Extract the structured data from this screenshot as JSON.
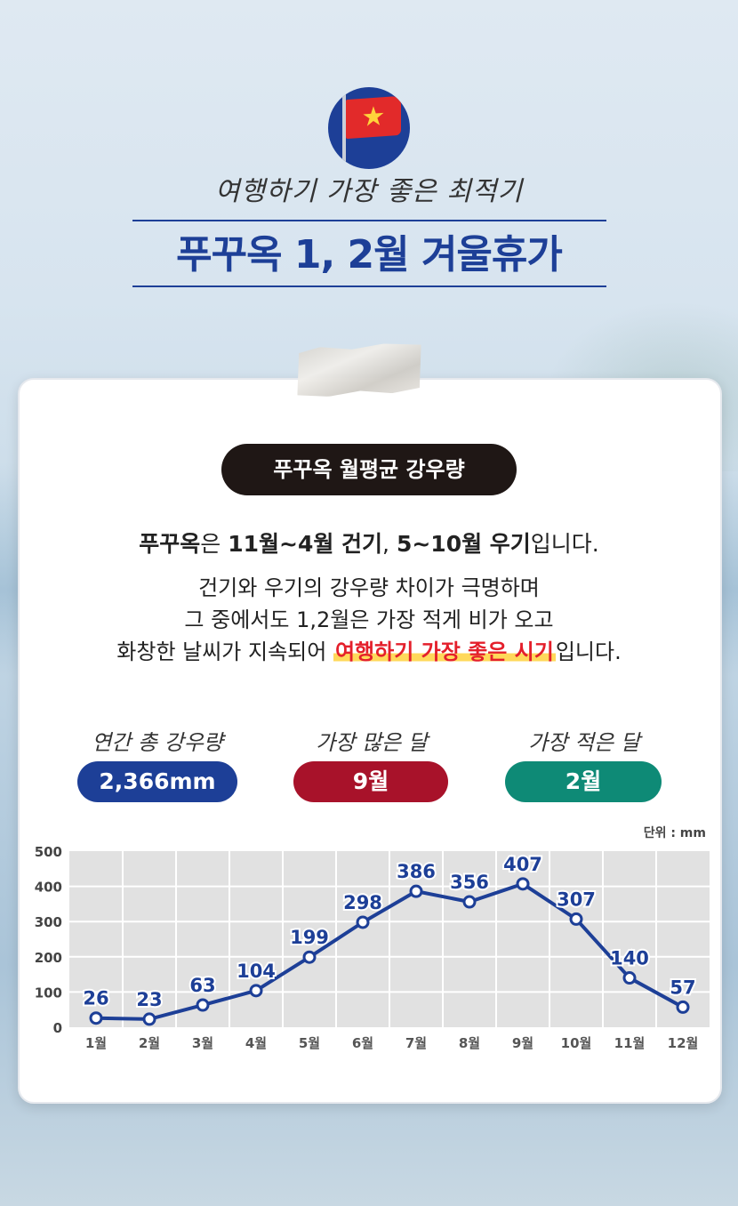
{
  "header": {
    "subtitle": "여행하기 가장 좋은 최적기",
    "title": "푸꾸옥 1, 2월 겨울휴가"
  },
  "card": {
    "pill_title": "푸꾸옥 월평균 강우량",
    "p1_part1": "푸꾸옥",
    "p1_part2": "은 ",
    "p1_part3": "11월~4월 건기",
    "p1_part4": ", ",
    "p1_part5": "5~10월 우기",
    "p1_part6": "입니다.",
    "p2_line1": "건기와 우기의 강우량 차이가 극명하며",
    "p2_line2": "그 중에서도 1,2월은 가장 적게 비가 오고",
    "p2_line3_a": "화창한 날씨가 지속되어 ",
    "p2_line3_highlight": "여행하기 가장 좋은 시기",
    "p2_line3_b": "입니다."
  },
  "stats": [
    {
      "label": "연간 총 강우량",
      "value": "2,366mm",
      "color": "#1d3f97"
    },
    {
      "label": "가장 많은 달",
      "value": "9월",
      "color": "#a8122a"
    },
    {
      "label": "가장 적은 달",
      "value": "2월",
      "color": "#0e8a76"
    }
  ],
  "unit_label": "단위 : mm",
  "colors": {
    "accent": "#1d3f97",
    "grid_bg": "#e1e1e1"
  },
  "chart_data": {
    "type": "line",
    "categories": [
      "1월",
      "2월",
      "3월",
      "4월",
      "5월",
      "6월",
      "7월",
      "8월",
      "9월",
      "10월",
      "11월",
      "12월"
    ],
    "values": [
      26,
      23,
      63,
      104,
      199,
      298,
      386,
      356,
      407,
      307,
      140,
      57
    ],
    "ylim": [
      0,
      500
    ],
    "yticks": [
      0,
      100,
      200,
      300,
      400,
      500
    ],
    "grid": true
  }
}
